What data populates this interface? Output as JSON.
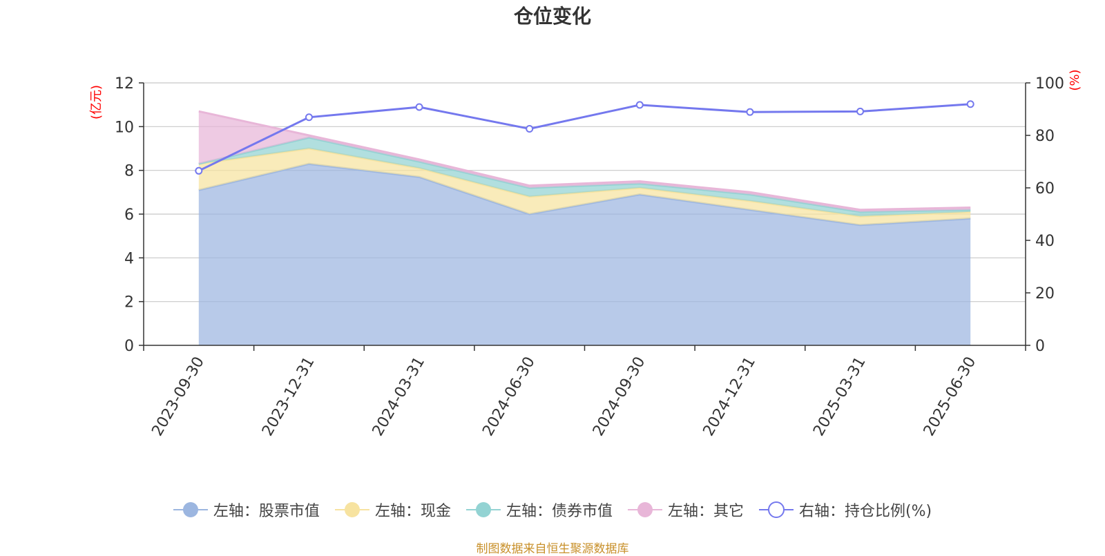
{
  "title": "仓位变化",
  "source_note": "制图数据来自恒生聚源数据库",
  "colors": {
    "stock": "#9cb6e0",
    "cash": "#f7e3a0",
    "bond": "#93d3d3",
    "other": "#e8b6d8",
    "ratio": "#7478ee",
    "axis_unit": "#ff0000"
  },
  "chart_data": {
    "type": "area",
    "title": "仓位变化",
    "x": [
      "2023-09-30",
      "2023-12-31",
      "2024-03-31",
      "2024-06-30",
      "2024-09-30",
      "2024-12-31",
      "2025-03-31",
      "2025-06-30"
    ],
    "y_left": {
      "unit_label": "(亿元)",
      "range": [
        0,
        12
      ],
      "ticks": [
        0,
        2,
        4,
        6,
        8,
        10,
        12
      ]
    },
    "y_right": {
      "unit_label": "(%)",
      "range": [
        0,
        100
      ],
      "ticks": [
        0,
        20,
        40,
        60,
        80,
        100
      ]
    },
    "grid": true,
    "legend_position": "bottom",
    "series": [
      {
        "name": "左轴：股票市值",
        "axis": "left",
        "kind": "area",
        "icon": "filled-circle",
        "color_key": "stock",
        "values": [
          7.1,
          8.3,
          7.7,
          6.0,
          6.9,
          6.2,
          5.5,
          5.8
        ]
      },
      {
        "name": "左轴：现金",
        "axis": "left",
        "kind": "area",
        "icon": "filled-circle",
        "color_key": "cash",
        "values": [
          1.2,
          0.7,
          0.4,
          0.8,
          0.3,
          0.4,
          0.4,
          0.3
        ]
      },
      {
        "name": "左轴：债券市值",
        "axis": "left",
        "kind": "area",
        "icon": "filled-circle",
        "color_key": "bond",
        "values": [
          0,
          0.5,
          0.3,
          0.4,
          0.2,
          0.3,
          0.2,
          0.1
        ]
      },
      {
        "name": "左轴：其它",
        "axis": "left",
        "kind": "area",
        "icon": "filled-circle",
        "color_key": "other",
        "values": [
          2.4,
          0.1,
          0.1,
          0.1,
          0.1,
          0.1,
          0.1,
          0.1
        ]
      },
      {
        "name": "右轴：持仓比例(%)",
        "axis": "right",
        "kind": "line",
        "icon": "hollow-circle",
        "color_key": "ratio",
        "values": [
          66.5,
          86.9,
          90.8,
          82.5,
          91.6,
          88.9,
          89.1,
          91.9
        ]
      }
    ]
  }
}
